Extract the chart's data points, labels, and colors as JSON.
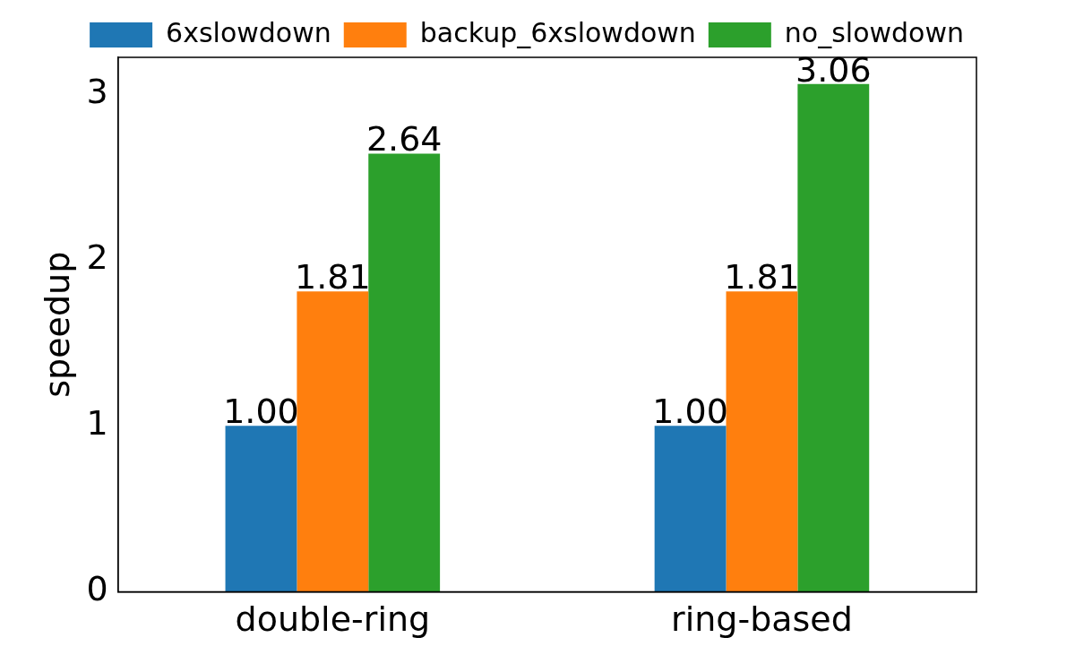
{
  "chart_data": {
    "type": "bar",
    "ylabel": "speedup",
    "categories": [
      "double-ring",
      "ring-based"
    ],
    "series": [
      {
        "name": "6xslowdown",
        "color": "#1f77b4",
        "values": [
          1.0,
          1.0
        ],
        "value_labels": [
          "1.00",
          "1.00"
        ]
      },
      {
        "name": "backup_6xslowdown",
        "color": "#ff7f0e",
        "values": [
          1.81,
          1.81
        ],
        "value_labels": [
          "1.81",
          "1.81"
        ]
      },
      {
        "name": "no_slowdown",
        "color": "#2ca02c",
        "values": [
          2.64,
          3.06
        ],
        "value_labels": [
          "2.64",
          "3.06"
        ]
      }
    ],
    "ylim": [
      0,
      3.22
    ],
    "yticks": [
      0,
      1,
      2,
      3
    ],
    "grid": false,
    "legend": "top"
  }
}
